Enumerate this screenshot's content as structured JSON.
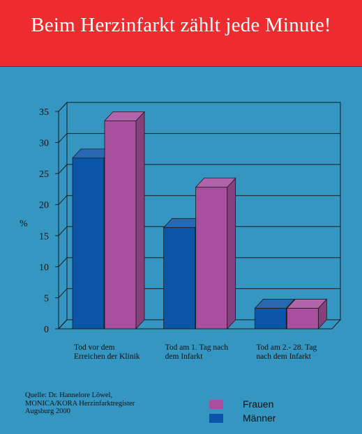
{
  "header": {
    "title": "Beim Herzinfarkt zählt jede Minute!"
  },
  "chart_data": {
    "type": "bar",
    "title": "",
    "ylabel": "%",
    "xlabel": "",
    "ylim": [
      0,
      35
    ],
    "yticks": [
      0,
      5,
      10,
      15,
      20,
      25,
      30,
      35
    ],
    "grid": true,
    "categories": [
      [
        "Tod vor dem",
        "Erreichen der Klinik"
      ],
      [
        "Tod am 1. Tag nach",
        "dem Infarkt"
      ],
      [
        "Tod am 2.- 28. Tag",
        "nach dem Infarkt"
      ]
    ],
    "series": [
      {
        "name": "Männer",
        "color": "#0a55a8",
        "values": [
          27.5,
          16.3,
          3.3
        ]
      },
      {
        "name": "Frauen",
        "color": "#a8509e",
        "values": [
          33.5,
          22.8,
          3.3
        ]
      }
    ],
    "legend_order": [
      "Frauen",
      "Männer"
    ],
    "legend_position": "bottom-right"
  },
  "source": {
    "lines": [
      "Quelle: Dr. Hannelore Löwel,",
      "MONICA/KORA Herzinfarktregister",
      "Augsburg 2000"
    ]
  }
}
